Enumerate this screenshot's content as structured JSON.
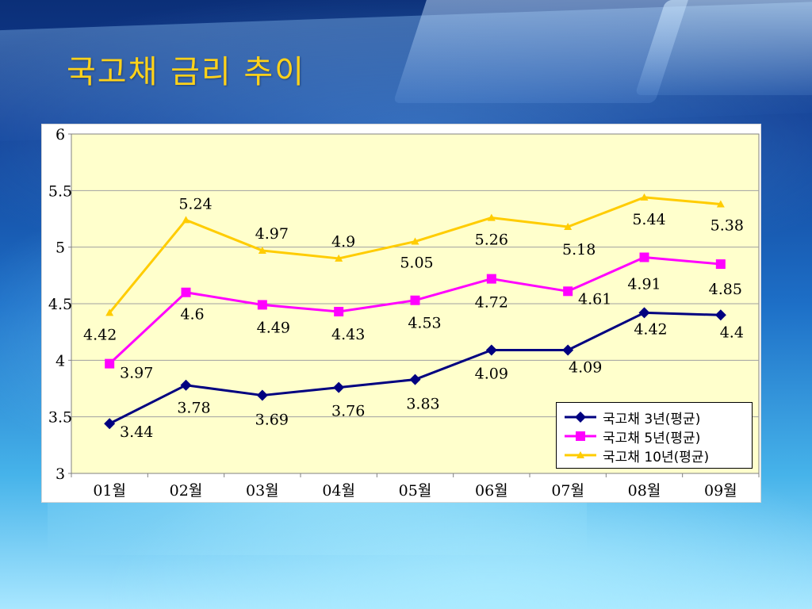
{
  "slide": {
    "title": "국고채 금리 추이"
  },
  "chart_data": {
    "type": "line",
    "categories": [
      "01월",
      "02월",
      "03월",
      "04월",
      "05월",
      "06월",
      "07월",
      "08월",
      "09월"
    ],
    "ylim": [
      3,
      6
    ],
    "yticks": [
      3,
      3.5,
      4,
      4.5,
      5,
      5.5,
      6
    ],
    "ytick_labels": [
      "3",
      "3.5",
      "4",
      "4.5",
      "5",
      "5.5",
      "6"
    ],
    "grid": "horizontal",
    "plot_background": "#ffffcc",
    "legend_position": "bottom-right",
    "series": [
      {
        "name": "국고채 3년(평균)",
        "values": [
          3.44,
          3.78,
          3.69,
          3.76,
          3.83,
          4.09,
          4.09,
          4.42,
          4.4
        ],
        "data_labels": [
          "3.44",
          "3.78",
          "3.69",
          "3.76",
          "3.83",
          "4.09",
          "4.09",
          "4.42",
          "4.4"
        ],
        "color": "#000080",
        "marker": "diamond"
      },
      {
        "name": "국고채 5년(평균)",
        "values": [
          3.97,
          4.6,
          4.49,
          4.43,
          4.53,
          4.72,
          4.61,
          4.91,
          4.85
        ],
        "data_labels": [
          "3.97",
          "4.6",
          "4.49",
          "4.43",
          "4.53",
          "4.72",
          "4.61",
          "4.91",
          "4.85"
        ],
        "color": "#ff00ff",
        "marker": "square"
      },
      {
        "name": "국고채 10년(평균)",
        "values": [
          4.42,
          5.24,
          4.97,
          4.9,
          5.05,
          5.26,
          5.18,
          5.44,
          5.38
        ],
        "data_labels": [
          "4.42",
          "5.24",
          "4.97",
          "4.9",
          "5.05",
          "5.26",
          "5.18",
          "5.44",
          "5.38"
        ],
        "color": "#ffcc00",
        "marker": "triangle"
      }
    ]
  }
}
